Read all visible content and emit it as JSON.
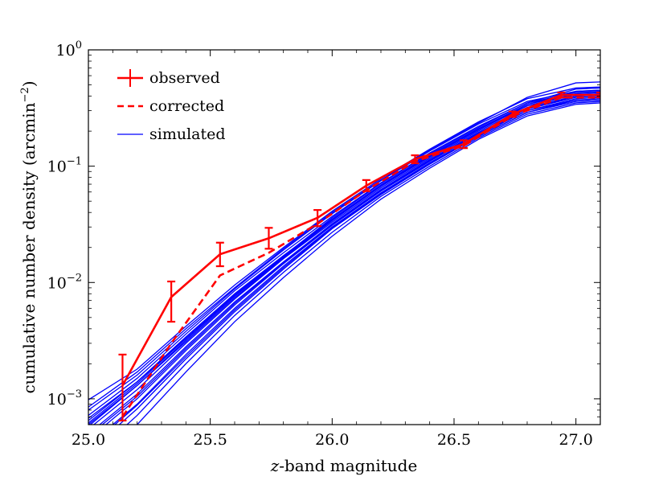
{
  "chart_data": {
    "type": "line",
    "xlabel_var": "z",
    "xlabel_rest": "-band magnitude",
    "ylabel_main": "cumulative number density (arcmin",
    "ylabel_exp": "−2",
    "ylabel_close": ")",
    "xlim": [
      25.0,
      27.1
    ],
    "ylim": [
      0.0006,
      1.0
    ],
    "yscale": "log",
    "x_ticks": [
      {
        "value": 25.0,
        "label": "25.0"
      },
      {
        "value": 25.5,
        "label": "25.5"
      },
      {
        "value": 26.0,
        "label": "26.0"
      },
      {
        "value": 26.5,
        "label": "26.5"
      },
      {
        "value": 27.0,
        "label": "27.0"
      }
    ],
    "y_ticks": [
      {
        "value": 0.001,
        "base": "10",
        "exp": "−3"
      },
      {
        "value": 0.01,
        "base": "10",
        "exp": "−2"
      },
      {
        "value": 0.1,
        "base": "10",
        "exp": "−1"
      },
      {
        "value": 1.0,
        "base": "10",
        "exp": "0"
      }
    ],
    "grid": false,
    "legend_position": "top-left",
    "legend": [
      {
        "label": "observed",
        "style": "errorbar",
        "color": "#ff0000"
      },
      {
        "label": "corrected",
        "style": "dashed",
        "color": "#ff0000"
      },
      {
        "label": "simulated",
        "style": "solid",
        "color": "#0000ff"
      }
    ],
    "series": [
      {
        "name": "observed",
        "color": "#ff0000",
        "x": [
          25.14,
          25.34,
          25.54,
          25.74,
          25.94,
          26.14,
          26.34,
          26.54,
          26.74,
          26.94,
          27.1
        ],
        "y": [
          0.0013,
          0.0075,
          0.0175,
          0.024,
          0.036,
          0.068,
          0.115,
          0.155,
          0.28,
          0.41,
          0.41
        ],
        "yerr_low": [
          0.00065,
          0.0046,
          0.0138,
          0.0195,
          0.0305,
          0.061,
          0.106,
          0.143,
          0.265,
          0.39,
          0.39
        ],
        "yerr_high": [
          0.0024,
          0.0102,
          0.022,
          0.0295,
          0.042,
          0.076,
          0.124,
          0.167,
          0.295,
          0.43,
          0.43
        ]
      },
      {
        "name": "corrected",
        "color": "#ff0000",
        "x": [
          25.14,
          25.34,
          25.54,
          25.74,
          25.94,
          26.14,
          26.34,
          26.54,
          26.74,
          26.94,
          27.1
        ],
        "y": [
          0.0007,
          0.003,
          0.0115,
          0.018,
          0.032,
          0.062,
          0.11,
          0.15,
          0.27,
          0.39,
          0.39
        ]
      },
      {
        "name": "simulated",
        "color": "#0000ff",
        "x": [
          25.0,
          25.2,
          25.4,
          25.6,
          25.8,
          26.0,
          26.2,
          26.4,
          26.6,
          26.8,
          27.0,
          27.1
        ],
        "curves": [
          [
            0.00098,
            0.0018,
            0.0042,
            0.0095,
            0.02,
            0.041,
            0.078,
            0.14,
            0.24,
            0.38,
            0.47,
            0.48
          ],
          [
            0.0008,
            0.0016,
            0.0038,
            0.0088,
            0.019,
            0.039,
            0.075,
            0.135,
            0.23,
            0.36,
            0.44,
            0.45
          ],
          [
            0.00072,
            0.0015,
            0.0036,
            0.0085,
            0.018,
            0.037,
            0.072,
            0.13,
            0.22,
            0.35,
            0.43,
            0.44
          ],
          [
            0.00065,
            0.0014,
            0.0034,
            0.008,
            0.017,
            0.035,
            0.069,
            0.125,
            0.21,
            0.34,
            0.42,
            0.43
          ],
          [
            0.0006,
            0.0013,
            0.0032,
            0.0076,
            0.0165,
            0.034,
            0.067,
            0.12,
            0.205,
            0.33,
            0.41,
            0.42
          ],
          [
            0.00055,
            0.0012,
            0.003,
            0.0072,
            0.016,
            0.033,
            0.065,
            0.117,
            0.2,
            0.32,
            0.4,
            0.41
          ],
          [
            0.0005,
            0.0011,
            0.0028,
            0.0068,
            0.015,
            0.032,
            0.063,
            0.114,
            0.195,
            0.31,
            0.39,
            0.4
          ],
          [
            0.00045,
            0.001,
            0.0026,
            0.0064,
            0.0145,
            0.031,
            0.061,
            0.11,
            0.19,
            0.3,
            0.38,
            0.39
          ],
          [
            0.0004,
            0.0009,
            0.0024,
            0.006,
            0.0138,
            0.03,
            0.059,
            0.107,
            0.185,
            0.3,
            0.37,
            0.38
          ],
          [
            0.00035,
            0.00082,
            0.0022,
            0.0056,
            0.013,
            0.029,
            0.057,
            0.104,
            0.18,
            0.29,
            0.36,
            0.37
          ],
          [
            0.0003,
            0.00072,
            0.002,
            0.0052,
            0.0122,
            0.027,
            0.055,
            0.1,
            0.175,
            0.28,
            0.35,
            0.36
          ],
          [
            0.00025,
            0.0006,
            0.0017,
            0.0046,
            0.011,
            0.025,
            0.052,
            0.096,
            0.17,
            0.27,
            0.34,
            0.35
          ],
          [
            0.00058,
            0.0013,
            0.0031,
            0.0074,
            0.0162,
            0.034,
            0.068,
            0.123,
            0.208,
            0.34,
            0.44,
            0.45
          ],
          [
            0.00068,
            0.0014,
            0.0033,
            0.0078,
            0.0168,
            0.036,
            0.071,
            0.128,
            0.215,
            0.35,
            0.46,
            0.47
          ],
          [
            0.00048,
            0.00105,
            0.0027,
            0.0066,
            0.0148,
            0.0315,
            0.062,
            0.112,
            0.192,
            0.31,
            0.4,
            0.41
          ],
          [
            0.00085,
            0.0017,
            0.004,
            0.009,
            0.0195,
            0.04,
            0.076,
            0.138,
            0.235,
            0.39,
            0.52,
            0.53
          ],
          [
            0.00038,
            0.00088,
            0.0023,
            0.0058,
            0.0134,
            0.0295,
            0.058,
            0.105,
            0.18,
            0.29,
            0.37,
            0.38
          ],
          [
            0.00062,
            0.00135,
            0.0033,
            0.0078,
            0.0168,
            0.0345,
            0.068,
            0.122,
            0.21,
            0.33,
            0.42,
            0.43
          ]
        ]
      }
    ]
  }
}
